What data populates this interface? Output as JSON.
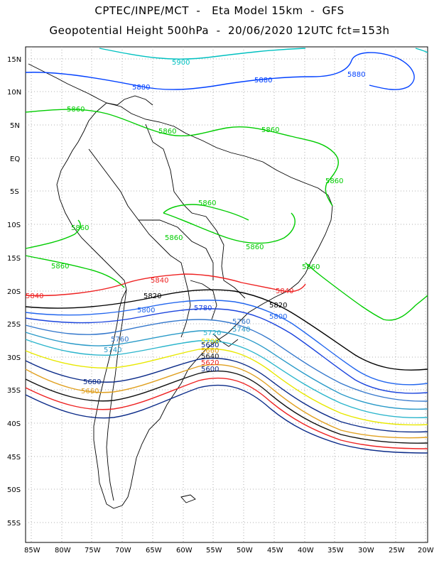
{
  "header": {
    "line1": "CPTEC/INPE/MCT  -   Eta Model 15km  -  GFS",
    "line2": "Geopotential Height 500hPa  -  20/06/2020 12UTC fct=153h"
  },
  "axes": {
    "lat_labels": [
      "15N",
      "10N",
      "5N",
      "EQ",
      "5S",
      "10S",
      "15S",
      "20S",
      "25S",
      "30S",
      "35S",
      "40S",
      "45S",
      "50S",
      "55S"
    ],
    "lon_labels": [
      "85W",
      "80W",
      "75W",
      "70W",
      "65W",
      "60W",
      "55W",
      "50W",
      "45W",
      "40W",
      "35W",
      "30W",
      "25W",
      "20W"
    ]
  },
  "colors": {
    "c5900": "#00c0c0",
    "c5880": "#0040ff",
    "c5860": "#00cc00",
    "c5840": "#ee2222",
    "c5820": "#000000",
    "c5800": "#2266ee",
    "c5780": "#1a44dd",
    "c5760": "#3377cc",
    "c5740": "#2a9ac8",
    "c5720": "#2bb5cc",
    "c5700": "#e8e800",
    "c5680": "#0a2a88",
    "c5660": "#e0a020",
    "c5640": "#111111",
    "c5620": "#ee2222",
    "coast": "#000000",
    "grid": "#999999"
  },
  "contour_labels": [
    {
      "text": "5900",
      "color": "#00c0c0"
    },
    {
      "text": "5880",
      "color": "#0040ff"
    },
    {
      "text": "5880",
      "color": "#0040ff"
    },
    {
      "text": "5880",
      "color": "#0040ff"
    },
    {
      "text": "5860",
      "color": "#00cc00"
    },
    {
      "text": "5860",
      "color": "#00cc00"
    },
    {
      "text": "5860",
      "color": "#00cc00"
    },
    {
      "text": "5860",
      "color": "#00cc00"
    },
    {
      "text": "5860",
      "color": "#00cc00"
    },
    {
      "text": "5860",
      "color": "#00cc00"
    },
    {
      "text": "5860",
      "color": "#00cc00"
    },
    {
      "text": "5860",
      "color": "#00cc00"
    },
    {
      "text": "5860",
      "color": "#00cc00"
    },
    {
      "text": "5860",
      "color": "#00cc00"
    },
    {
      "text": "5840",
      "color": "#ee2222"
    },
    {
      "text": "5840",
      "color": "#ee2222"
    },
    {
      "text": "5840",
      "color": "#ee2222"
    },
    {
      "text": "5820",
      "color": "#000000"
    },
    {
      "text": "5820",
      "color": "#000000"
    },
    {
      "text": "5800",
      "color": "#2266ee"
    },
    {
      "text": "5800",
      "color": "#2266ee"
    },
    {
      "text": "5780",
      "color": "#1a44dd"
    },
    {
      "text": "5760",
      "color": "#3377cc"
    },
    {
      "text": "5760",
      "color": "#3377cc"
    },
    {
      "text": "5740",
      "color": "#2a9ac8"
    },
    {
      "text": "5740",
      "color": "#2a9ac8"
    },
    {
      "text": "5720",
      "color": "#2bb5cc"
    },
    {
      "text": "5700",
      "color": "#e8e800"
    },
    {
      "text": "5680",
      "color": "#0a2a88"
    },
    {
      "text": "5680",
      "color": "#0a2a88"
    },
    {
      "text": "5660",
      "color": "#e0a020"
    },
    {
      "text": "5660",
      "color": "#e0a020"
    },
    {
      "text": "5640",
      "color": "#111111"
    },
    {
      "text": "5620",
      "color": "#ee2222"
    },
    {
      "text": "5600",
      "color": "#0a2a88"
    }
  ]
}
